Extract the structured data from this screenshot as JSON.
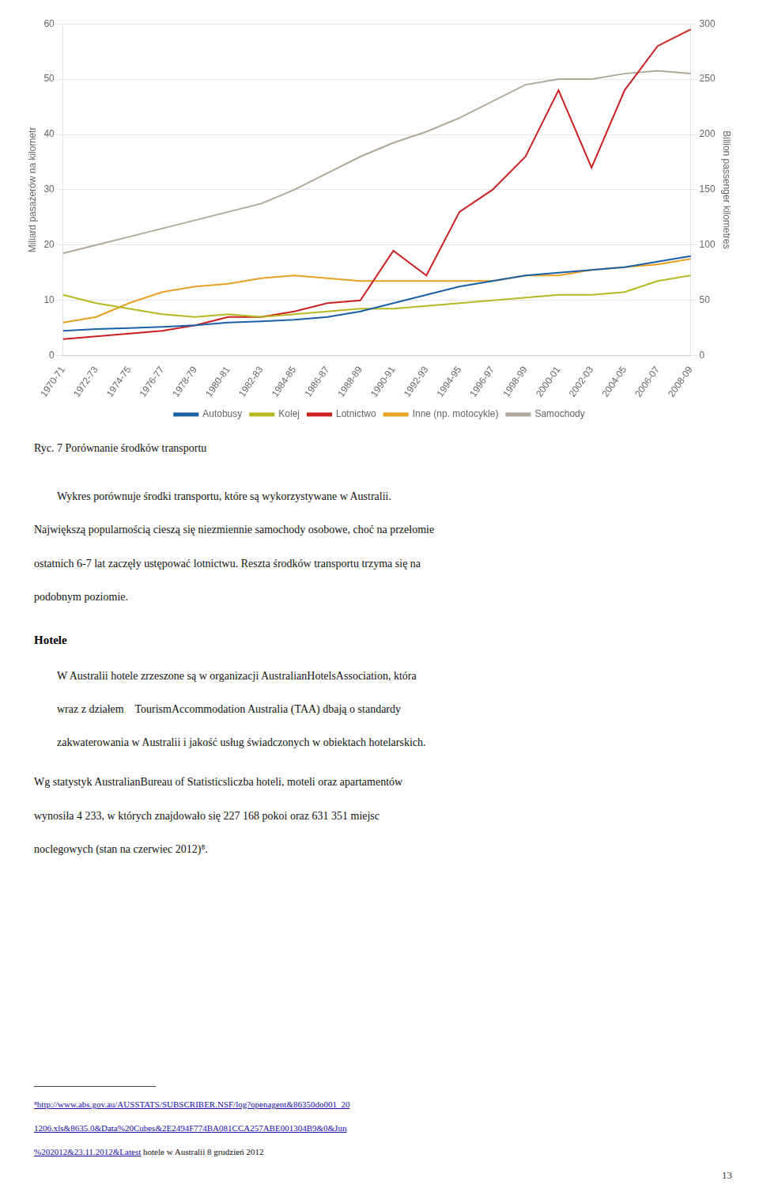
{
  "chart_data": {
    "type": "line",
    "ylabel": "Miliard pasażerów na kilometr",
    "y2label": "Billion passenger kilometres",
    "ylim": [
      0,
      60
    ],
    "yticks": [
      0,
      10,
      20,
      30,
      40,
      50,
      60
    ],
    "y2lim": [
      0,
      300
    ],
    "y2ticks": [
      0,
      50,
      100,
      150,
      200,
      250,
      300
    ],
    "grid": true,
    "legend": "bottom",
    "categories": [
      "1970-71",
      "1972-73",
      "1974-75",
      "1976-77",
      "1978-79",
      "1980-81",
      "1982-83",
      "1984-85",
      "1986-87",
      "1988-89",
      "1990-91",
      "1992-93",
      "1994-95",
      "1996-97",
      "1998-99",
      "2000-01",
      "2002-03",
      "2004-05",
      "2006-07",
      "2008-09"
    ],
    "series": [
      {
        "name": "Autobusy",
        "color": "#1b5fa8",
        "values": [
          4.5,
          4.8,
          5.0,
          5.2,
          5.5,
          6.0,
          6.2,
          6.5,
          7.0,
          8.0,
          9.5,
          11.0,
          12.5,
          13.5,
          14.5,
          15.0,
          15.5,
          16.0,
          17.0,
          18.0
        ]
      },
      {
        "name": "Kolej",
        "color": "#b5b820",
        "values": [
          11.0,
          9.5,
          8.5,
          7.5,
          7.0,
          7.5,
          7.0,
          7.5,
          8.0,
          8.5,
          8.5,
          9.0,
          9.5,
          10.0,
          10.5,
          11.0,
          11.0,
          11.5,
          13.5,
          14.5
        ]
      },
      {
        "name": "Lotnictwo",
        "color": "#cc1f1f",
        "values": [
          3.0,
          3.5,
          4.0,
          4.5,
          5.5,
          7.0,
          7.0,
          8.0,
          9.5,
          10.0,
          19.0,
          14.5,
          26.0,
          30.0,
          36.0,
          48.0,
          34.0,
          48.0,
          56.0,
          59.0
        ]
      },
      {
        "name": "Inne (np. motocykle)",
        "color": "#e8a020",
        "values": [
          6.0,
          7.0,
          9.5,
          11.5,
          12.5,
          13.0,
          14.0,
          14.5,
          14.0,
          13.5,
          13.5,
          13.5,
          13.5,
          13.5,
          14.5,
          14.5,
          15.5,
          16.0,
          16.5,
          17.5
        ]
      },
      {
        "name": "Samochody",
        "color": "#b0a898",
        "values": [
          18.5,
          20.0,
          21.5,
          23.0,
          24.5,
          26.0,
          27.5,
          30.0,
          33.0,
          36.0,
          38.5,
          40.5,
          43.0,
          46.0,
          49.0,
          50.0,
          50.0,
          51.0,
          51.5,
          51.0
        ]
      }
    ]
  },
  "page_text": {
    "caption": "Ryc. 7 Porównanie środków transportu",
    "para1": [
      "Wykres porównuje środki transportu, które są wykorzystywane w Australii.",
      "Największą popularnością cieszą się niezmiennie samochody osobowe, choć na przełomie",
      "ostatnich 6-7 lat zaczęły ustępować lotnictwu. Reszta środków transportu trzyma się na",
      "podobnym poziomie."
    ],
    "hotele_header": "Hotele",
    "hotele": [
      "W Australii hotele zrzeszone są w organizacji AustralianHotelsAssociation, która",
      "wraz z działem    TourismAccommodation Australia (TAA) dbają o standardy",
      "zakwaterowania w Australii i jakość usług świadczonych w obiektach hotelarskich."
    ],
    "hotele2": [
      "Wg statystyk AustralianBureau of Statisticsliczba hoteli, moteli oraz apartamentów",
      "wynosiła 4 233, w których znajdowało się 227 168 pokoi oraz 631 351 miejsc",
      "noclegowych (stan na czerwiec 2012)⁸."
    ],
    "footnote": [
      "⁸http://www.abs.gov.au/AUSSTATS/SUBSCRIBER.NSF/log?openagent&86350do001_20",
      "1206.xls&8635.0&Data%20Cubes&2E2494F774BA081CCA257ABE001304B9&0&Jun",
      "%202012&23.11.2012&Latest"
    ],
    "footnote_rest": " hotele w Australii 8 grudzień 2012",
    "page_num": "13"
  }
}
